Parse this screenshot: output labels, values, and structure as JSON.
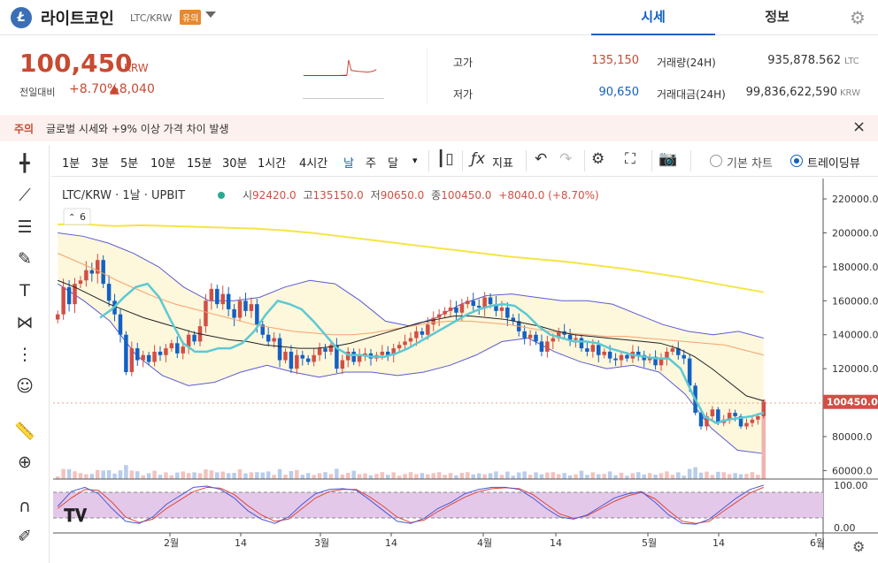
{
  "header": {
    "logo_letter": "Ł",
    "coin_name": "라이트코인",
    "pair": "LTC/KRW",
    "warning_badge": "유의",
    "tabs": [
      {
        "label": "시세"
      },
      {
        "label": "정보"
      }
    ]
  },
  "summary": {
    "price": "100,450",
    "unit": "KRW",
    "prev_label": "전일대비",
    "change_rate": "+8.70%",
    "change_amount": "▲8,040",
    "high_label": "고가",
    "high_value": "135,150",
    "low_label": "저가",
    "low_value": "90,650",
    "volume_label": "거래량(24H)",
    "volume_value": "935,878.562",
    "volume_unit": "LTC",
    "amount_label": "거래대금(24H)",
    "amount_value": "99,836,622,590",
    "amount_unit": "KRW"
  },
  "notice": {
    "tag": "주의",
    "text": "글로벌 시세와 +9% 이상 가격 차이 발생",
    "close_icon": "×"
  },
  "toolbar": {
    "intervals": [
      "1분",
      "3분",
      "5분",
      "10분",
      "15분",
      "30분",
      "1시간",
      "4시간",
      "날",
      "주",
      "달"
    ],
    "indicator_label": "지표",
    "chart_mode_basic": "기본 차트",
    "chart_mode_tv": "트레이딩뷰"
  },
  "chart_legend": {
    "symbol": "LTC/KRW · 1날 · UPBIT",
    "open_label": "시",
    "open": "92420.0",
    "high_label": "고",
    "high": "135150.0",
    "low_label": "저",
    "low": "90650.0",
    "close_label": "종",
    "close": "100450.0",
    "change": "+8040.0 (+8.70%)",
    "indicator_count": "6"
  },
  "colors": {
    "up": "#d24f45",
    "down": "#1261c4",
    "accent": "#1261c4",
    "ma_black": "#222222",
    "ma_cyan": "#5cc9d3",
    "ma_orange": "#f5a36a",
    "ma_yellow": "#f4e542",
    "bollinger": "#5b5bd6"
  },
  "chart_data": {
    "type": "candlestick",
    "title": "LTC/KRW · 1날 · UPBIT",
    "y_ticks": [
      220000,
      200000,
      180000,
      160000,
      140000,
      120000,
      100000,
      80000,
      60000
    ],
    "y_tick_labels": [
      "220000.0",
      "200000.0",
      "180000.0",
      "160000.0",
      "140000.0",
      "120000.0",
      "100000.0",
      "80000.0",
      "60000.0"
    ],
    "ylim": [
      55000,
      232000
    ],
    "last_price_label": "100450.0",
    "last_price": 100450,
    "x_tick_labels": [
      "2월",
      "14",
      "3월",
      "14",
      "4월",
      "14",
      "5월",
      "14",
      "6월"
    ],
    "closes": [
      152000,
      168000,
      158000,
      170000,
      172000,
      178000,
      176000,
      184000,
      170000,
      160000,
      152000,
      140000,
      118000,
      132000,
      125000,
      128000,
      124000,
      130000,
      128000,
      132000,
      135000,
      129000,
      133000,
      140000,
      136000,
      145000,
      160000,
      167000,
      158000,
      164000,
      155000,
      150000,
      160000,
      154000,
      158000,
      146000,
      140000,
      136000,
      138000,
      125000,
      130000,
      120000,
      128000,
      126000,
      124000,
      128000,
      132000,
      130000,
      134000,
      120000,
      125000,
      130000,
      124000,
      128000,
      129000,
      126000,
      128000,
      130000,
      128000,
      132000,
      134000,
      136000,
      138000,
      142000,
      140000,
      146000,
      150000,
      152000,
      154000,
      156000,
      153000,
      158000,
      160000,
      157000,
      156000,
      162000,
      158000,
      154000,
      156000,
      150000,
      148000,
      142000,
      138000,
      140000,
      136000,
      130000,
      136000,
      138000,
      142000,
      140000,
      137000,
      138000,
      132000,
      130000,
      134000,
      128000,
      130000,
      126000,
      125000,
      128000,
      126000,
      130000,
      128000,
      125000,
      127000,
      122000,
      126000,
      130000,
      132000,
      128000,
      126000,
      110000,
      94000,
      86000,
      92000,
      96000,
      88000,
      90000,
      94000,
      92000,
      86000,
      88000,
      90000,
      92000,
      100450
    ],
    "ma_cyan": [
      150000,
      155000,
      162000,
      168000,
      170000,
      162000,
      148000,
      135000,
      130000,
      130000,
      132000,
      132000,
      135000,
      142000,
      152000,
      160000,
      158000,
      155000,
      148000,
      140000,
      132000,
      128000,
      128000,
      127000,
      127000,
      129000,
      132000,
      136000,
      140000,
      144000,
      148000,
      152000,
      155000,
      157000,
      158000,
      157000,
      152000,
      145000,
      140000,
      138000,
      136000,
      136000,
      135000,
      132000,
      130000,
      128000,
      127000,
      126000,
      126000,
      120000,
      105000,
      92000,
      88000,
      90000,
      91000,
      92000,
      94000
    ],
    "ma_black": [
      172000,
      168000,
      163000,
      158000,
      154000,
      150000,
      147000,
      144000,
      141000,
      139000,
      137000,
      136000,
      134000,
      133000,
      132000,
      132000,
      133000,
      135000,
      138000,
      141000,
      144000,
      147000,
      149000,
      151000,
      151000,
      150000,
      149000,
      147000,
      145000,
      142000,
      140000,
      139000,
      138000,
      137000,
      136000,
      135000,
      132000,
      127000,
      120000,
      112000,
      104000,
      101000
    ],
    "ma_orange": [
      188000,
      183000,
      178000,
      172000,
      167000,
      162000,
      158000,
      155000,
      152000,
      149000,
      146000,
      144000,
      142000,
      141000,
      140000,
      140000,
      141000,
      143000,
      145000,
      147000,
      148000,
      148000,
      147000,
      146000,
      144000,
      142000,
      141000,
      140000,
      139000,
      139000,
      138000,
      137000,
      136000,
      135000,
      134000,
      131000,
      128000
    ],
    "ma_yellow": [
      205000,
      205000,
      204000,
      204500,
      204000,
      203500,
      203000,
      202500,
      201500,
      200000,
      198000,
      196000,
      194000,
      192000,
      190000,
      188000,
      186000,
      184500,
      183000,
      181000,
      179000,
      176500,
      174000,
      171000,
      168000,
      165000
    ],
    "bb_upper": [
      200000,
      198000,
      194000,
      188000,
      180000,
      168000,
      160000,
      160000,
      162000,
      168000,
      172000,
      170000,
      160000,
      148000,
      145000,
      150000,
      158000,
      163000,
      164000,
      162000,
      160000,
      160000,
      158000,
      152000,
      146000,
      142000,
      140000,
      142000,
      138000
    ],
    "bb_lower": [
      170000,
      160000,
      148000,
      128000,
      116000,
      110000,
      112000,
      118000,
      122000,
      118000,
      115000,
      118000,
      118000,
      116000,
      118000,
      122000,
      128000,
      136000,
      138000,
      130000,
      124000,
      120000,
      122000,
      118000,
      105000,
      85000,
      72000,
      70000
    ],
    "stoch_k": [
      50,
      85,
      95,
      80,
      45,
      15,
      10,
      25,
      55,
      75,
      95,
      98,
      90,
      70,
      40,
      20,
      10,
      25,
      55,
      80,
      90,
      92,
      88,
      65,
      40,
      15,
      10,
      22,
      45,
      60,
      80,
      90,
      95,
      95,
      90,
      70,
      45,
      25,
      20,
      30,
      50,
      70,
      80,
      85,
      60,
      30,
      10,
      8,
      20,
      45,
      70,
      90,
      100
    ],
    "stoch_d": [
      45,
      70,
      90,
      88,
      60,
      25,
      12,
      20,
      45,
      65,
      85,
      95,
      93,
      78,
      52,
      30,
      15,
      20,
      45,
      70,
      85,
      90,
      90,
      72,
      50,
      25,
      12,
      18,
      38,
      55,
      72,
      85,
      92,
      94,
      92,
      78,
      55,
      32,
      22,
      28,
      45,
      62,
      75,
      83,
      68,
      40,
      15,
      10,
      15,
      38,
      60,
      82,
      95
    ],
    "stoch_labels": [
      "100.00",
      "0.00"
    ]
  }
}
